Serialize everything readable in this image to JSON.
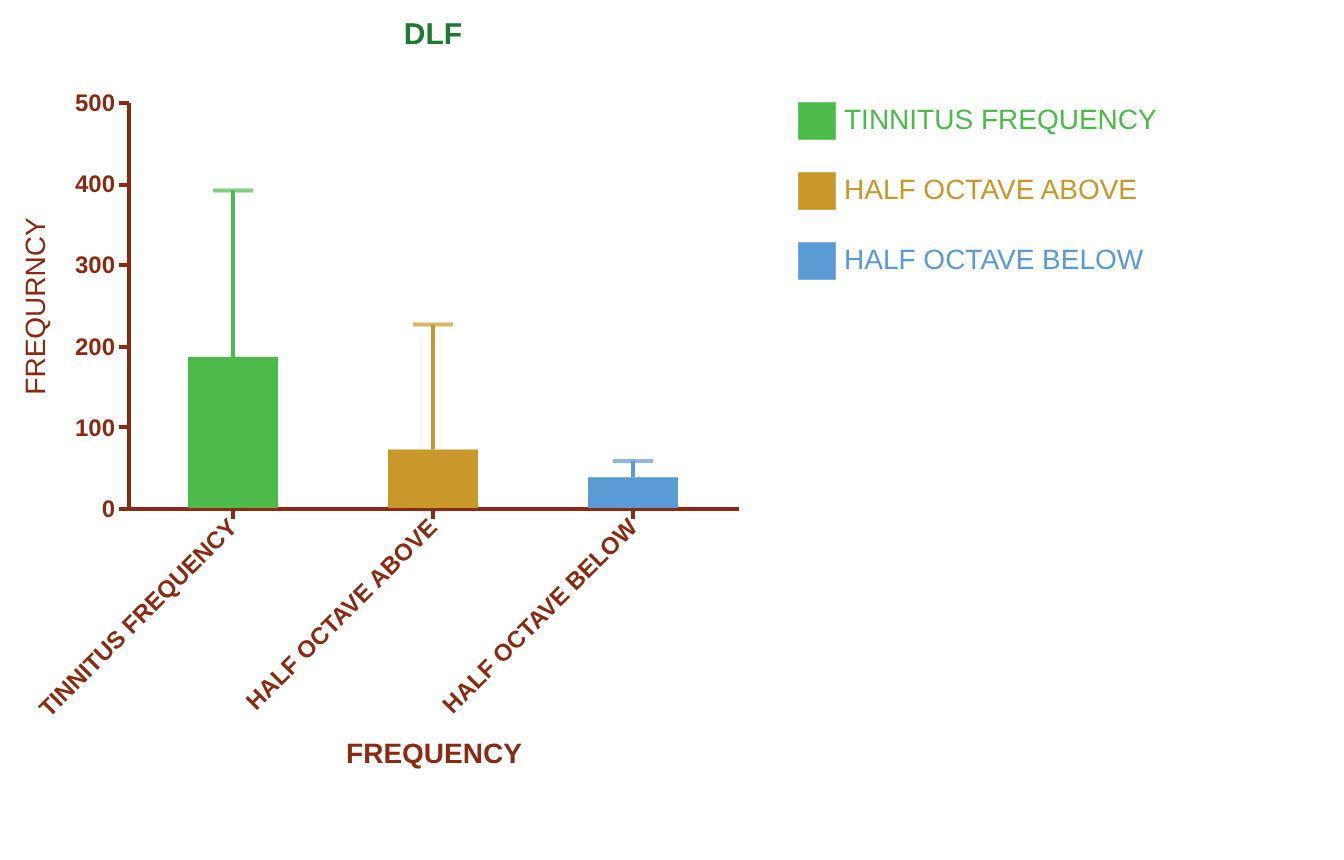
{
  "chart_data": {
    "type": "bar",
    "title": "DLF",
    "xlabel": "FREQUENCY",
    "ylabel": "FREQURNCY",
    "categories": [
      "TINNITUS FREQUENCY",
      "HALF OCTAVE ABOVE",
      "HALF OCTAVE BELOW"
    ],
    "series": [
      {
        "name": "TINNITUS FREQUENCY",
        "color": "#4dbb4a",
        "values": [
          186,
          null,
          null
        ],
        "errors": [
          [
            186,
            391
          ],
          null,
          null
        ]
      },
      {
        "name": "HALF OCTAVE ABOVE",
        "color": "#c8982a",
        "values": [
          null,
          72,
          null
        ],
        "errors": [
          null,
          [
            72,
            226
          ],
          null
        ]
      },
      {
        "name": "HALF OCTAVE BELOW",
        "color": "#5b9bd5",
        "values": [
          null,
          null,
          38
        ],
        "errors": [
          null,
          null,
          [
            38,
            58
          ]
        ]
      }
    ],
    "ylim": [
      0,
      500
    ],
    "yticks": [
      0,
      100,
      200,
      300,
      400,
      500
    ],
    "legend": "right"
  }
}
